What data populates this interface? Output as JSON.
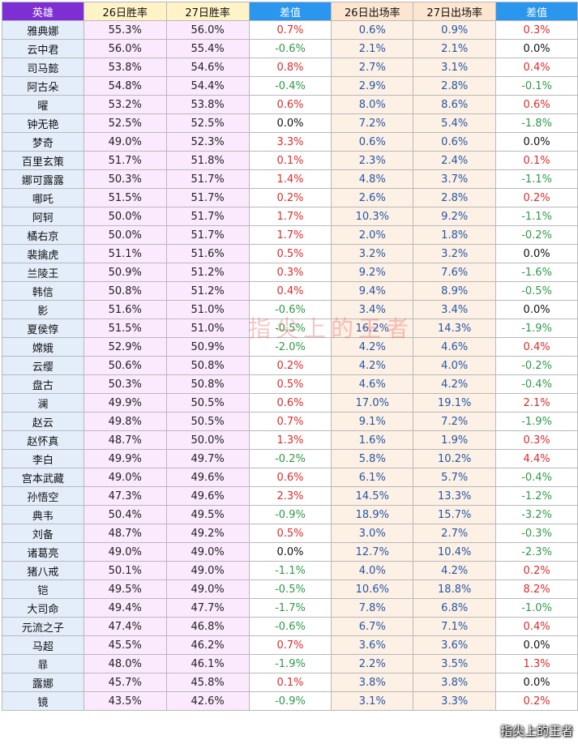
{
  "header": {
    "hero": "英雄",
    "win26": "26日胜率",
    "win27": "27日胜率",
    "win_diff": "差值",
    "pick26": "26日出场率",
    "pick27": "27日出场率",
    "pick_diff": "差值"
  },
  "rows": [
    {
      "hero": "雅典娜",
      "win26": "55.3%",
      "win27": "56.0%",
      "win_diff": "0.7%",
      "pick26": "0.6%",
      "pick27": "0.9%",
      "pick_diff": "0.3%"
    },
    {
      "hero": "云中君",
      "win26": "56.0%",
      "win27": "55.4%",
      "win_diff": "-0.6%",
      "pick26": "2.1%",
      "pick27": "2.1%",
      "pick_diff": "0.0%"
    },
    {
      "hero": "司马懿",
      "win26": "53.8%",
      "win27": "54.6%",
      "win_diff": "0.8%",
      "pick26": "2.7%",
      "pick27": "3.1%",
      "pick_diff": "0.4%"
    },
    {
      "hero": "阿古朵",
      "win26": "54.8%",
      "win27": "54.4%",
      "win_diff": "-0.4%",
      "pick26": "2.9%",
      "pick27": "2.8%",
      "pick_diff": "-0.1%"
    },
    {
      "hero": "曜",
      "win26": "53.2%",
      "win27": "53.8%",
      "win_diff": "0.6%",
      "pick26": "8.0%",
      "pick27": "8.6%",
      "pick_diff": "0.6%"
    },
    {
      "hero": "钟无艳",
      "win26": "52.5%",
      "win27": "52.5%",
      "win_diff": "0.0%",
      "pick26": "7.2%",
      "pick27": "5.4%",
      "pick_diff": "-1.8%"
    },
    {
      "hero": "梦奇",
      "win26": "49.0%",
      "win27": "52.3%",
      "win_diff": "3.3%",
      "pick26": "0.6%",
      "pick27": "0.6%",
      "pick_diff": "0.0%"
    },
    {
      "hero": "百里玄策",
      "win26": "51.7%",
      "win27": "51.8%",
      "win_diff": "0.1%",
      "pick26": "2.3%",
      "pick27": "2.4%",
      "pick_diff": "0.1%"
    },
    {
      "hero": "娜可露露",
      "win26": "50.3%",
      "win27": "51.7%",
      "win_diff": "1.4%",
      "pick26": "4.8%",
      "pick27": "3.7%",
      "pick_diff": "-1.1%"
    },
    {
      "hero": "哪吒",
      "win26": "51.5%",
      "win27": "51.7%",
      "win_diff": "0.2%",
      "pick26": "2.6%",
      "pick27": "2.8%",
      "pick_diff": "0.2%"
    },
    {
      "hero": "阿轲",
      "win26": "50.0%",
      "win27": "51.7%",
      "win_diff": "1.7%",
      "pick26": "10.3%",
      "pick27": "9.2%",
      "pick_diff": "-1.1%"
    },
    {
      "hero": "橘右京",
      "win26": "50.0%",
      "win27": "51.7%",
      "win_diff": "1.7%",
      "pick26": "2.0%",
      "pick27": "1.8%",
      "pick_diff": "-0.2%"
    },
    {
      "hero": "裴擒虎",
      "win26": "51.1%",
      "win27": "51.6%",
      "win_diff": "0.5%",
      "pick26": "3.2%",
      "pick27": "3.2%",
      "pick_diff": "0.0%"
    },
    {
      "hero": "兰陵王",
      "win26": "50.9%",
      "win27": "51.2%",
      "win_diff": "0.3%",
      "pick26": "9.2%",
      "pick27": "7.6%",
      "pick_diff": "-1.6%"
    },
    {
      "hero": "韩信",
      "win26": "50.8%",
      "win27": "51.2%",
      "win_diff": "0.4%",
      "pick26": "9.4%",
      "pick27": "8.9%",
      "pick_diff": "-0.5%"
    },
    {
      "hero": "影",
      "win26": "51.6%",
      "win27": "51.0%",
      "win_diff": "-0.6%",
      "pick26": "3.4%",
      "pick27": "3.4%",
      "pick_diff": "0.0%"
    },
    {
      "hero": "夏侯惇",
      "win26": "51.5%",
      "win27": "51.0%",
      "win_diff": "-0.5%",
      "pick26": "16.2%",
      "pick27": "14.3%",
      "pick_diff": "-1.9%"
    },
    {
      "hero": "嫦娥",
      "win26": "52.9%",
      "win27": "50.9%",
      "win_diff": "-2.0%",
      "pick26": "4.2%",
      "pick27": "4.6%",
      "pick_diff": "0.4%"
    },
    {
      "hero": "云缨",
      "win26": "50.6%",
      "win27": "50.8%",
      "win_diff": "0.2%",
      "pick26": "4.2%",
      "pick27": "4.0%",
      "pick_diff": "-0.2%"
    },
    {
      "hero": "盘古",
      "win26": "50.3%",
      "win27": "50.8%",
      "win_diff": "0.5%",
      "pick26": "4.6%",
      "pick27": "4.2%",
      "pick_diff": "-0.4%"
    },
    {
      "hero": "澜",
      "win26": "49.9%",
      "win27": "50.5%",
      "win_diff": "0.6%",
      "pick26": "17.0%",
      "pick27": "19.1%",
      "pick_diff": "2.1%"
    },
    {
      "hero": "赵云",
      "win26": "49.8%",
      "win27": "50.5%",
      "win_diff": "0.7%",
      "pick26": "9.1%",
      "pick27": "7.2%",
      "pick_diff": "-1.9%"
    },
    {
      "hero": "赵怀真",
      "win26": "48.7%",
      "win27": "50.0%",
      "win_diff": "1.3%",
      "pick26": "1.6%",
      "pick27": "1.9%",
      "pick_diff": "0.3%"
    },
    {
      "hero": "李白",
      "win26": "49.9%",
      "win27": "49.7%",
      "win_diff": "-0.2%",
      "pick26": "5.8%",
      "pick27": "10.2%",
      "pick_diff": "4.4%"
    },
    {
      "hero": "宫本武藏",
      "win26": "49.0%",
      "win27": "49.6%",
      "win_diff": "0.6%",
      "pick26": "6.1%",
      "pick27": "5.7%",
      "pick_diff": "-0.4%"
    },
    {
      "hero": "孙悟空",
      "win26": "47.3%",
      "win27": "49.6%",
      "win_diff": "2.3%",
      "pick26": "14.5%",
      "pick27": "13.3%",
      "pick_diff": "-1.2%"
    },
    {
      "hero": "典韦",
      "win26": "50.4%",
      "win27": "49.5%",
      "win_diff": "-0.9%",
      "pick26": "18.9%",
      "pick27": "15.7%",
      "pick_diff": "-3.2%"
    },
    {
      "hero": "刘备",
      "win26": "48.7%",
      "win27": "49.2%",
      "win_diff": "0.5%",
      "pick26": "3.0%",
      "pick27": "2.7%",
      "pick_diff": "-0.3%"
    },
    {
      "hero": "诸葛亮",
      "win26": "49.0%",
      "win27": "49.0%",
      "win_diff": "0.0%",
      "pick26": "12.7%",
      "pick27": "10.4%",
      "pick_diff": "-2.3%"
    },
    {
      "hero": "猪八戒",
      "win26": "50.1%",
      "win27": "49.0%",
      "win_diff": "-1.1%",
      "pick26": "4.0%",
      "pick27": "4.2%",
      "pick_diff": "0.2%"
    },
    {
      "hero": "铠",
      "win26": "49.5%",
      "win27": "49.0%",
      "win_diff": "-0.5%",
      "pick26": "10.6%",
      "pick27": "18.8%",
      "pick_diff": "8.2%"
    },
    {
      "hero": "大司命",
      "win26": "49.4%",
      "win27": "47.7%",
      "win_diff": "-1.7%",
      "pick26": "7.8%",
      "pick27": "6.8%",
      "pick_diff": "-1.0%"
    },
    {
      "hero": "元流之子",
      "win26": "47.4%",
      "win27": "46.8%",
      "win_diff": "-0.6%",
      "pick26": "6.7%",
      "pick27": "7.1%",
      "pick_diff": "0.4%"
    },
    {
      "hero": "马超",
      "win26": "45.5%",
      "win27": "46.2%",
      "win_diff": "0.7%",
      "pick26": "3.6%",
      "pick27": "3.6%",
      "pick_diff": "0.0%"
    },
    {
      "hero": "暃",
      "win26": "48.0%",
      "win27": "46.1%",
      "win_diff": "-1.9%",
      "pick26": "2.2%",
      "pick27": "3.5%",
      "pick_diff": "1.3%"
    },
    {
      "hero": "露娜",
      "win26": "45.7%",
      "win27": "45.8%",
      "win_diff": "0.1%",
      "pick26": "3.8%",
      "pick27": "3.8%",
      "pick_diff": "0.0%"
    },
    {
      "hero": "镜",
      "win26": "43.5%",
      "win27": "42.6%",
      "win_diff": "-0.9%",
      "pick26": "3.1%",
      "pick27": "3.3%",
      "pick_diff": "0.2%"
    }
  ],
  "watermark": "指尖上的王者",
  "corner_mark": "指尖上的王者",
  "colors": {
    "hero_header": "#7d2fd4",
    "diff_header": "#2a96ee",
    "positive": "#e02b2b",
    "negative": "#2e9a46",
    "pick_text": "#2357a8"
  }
}
